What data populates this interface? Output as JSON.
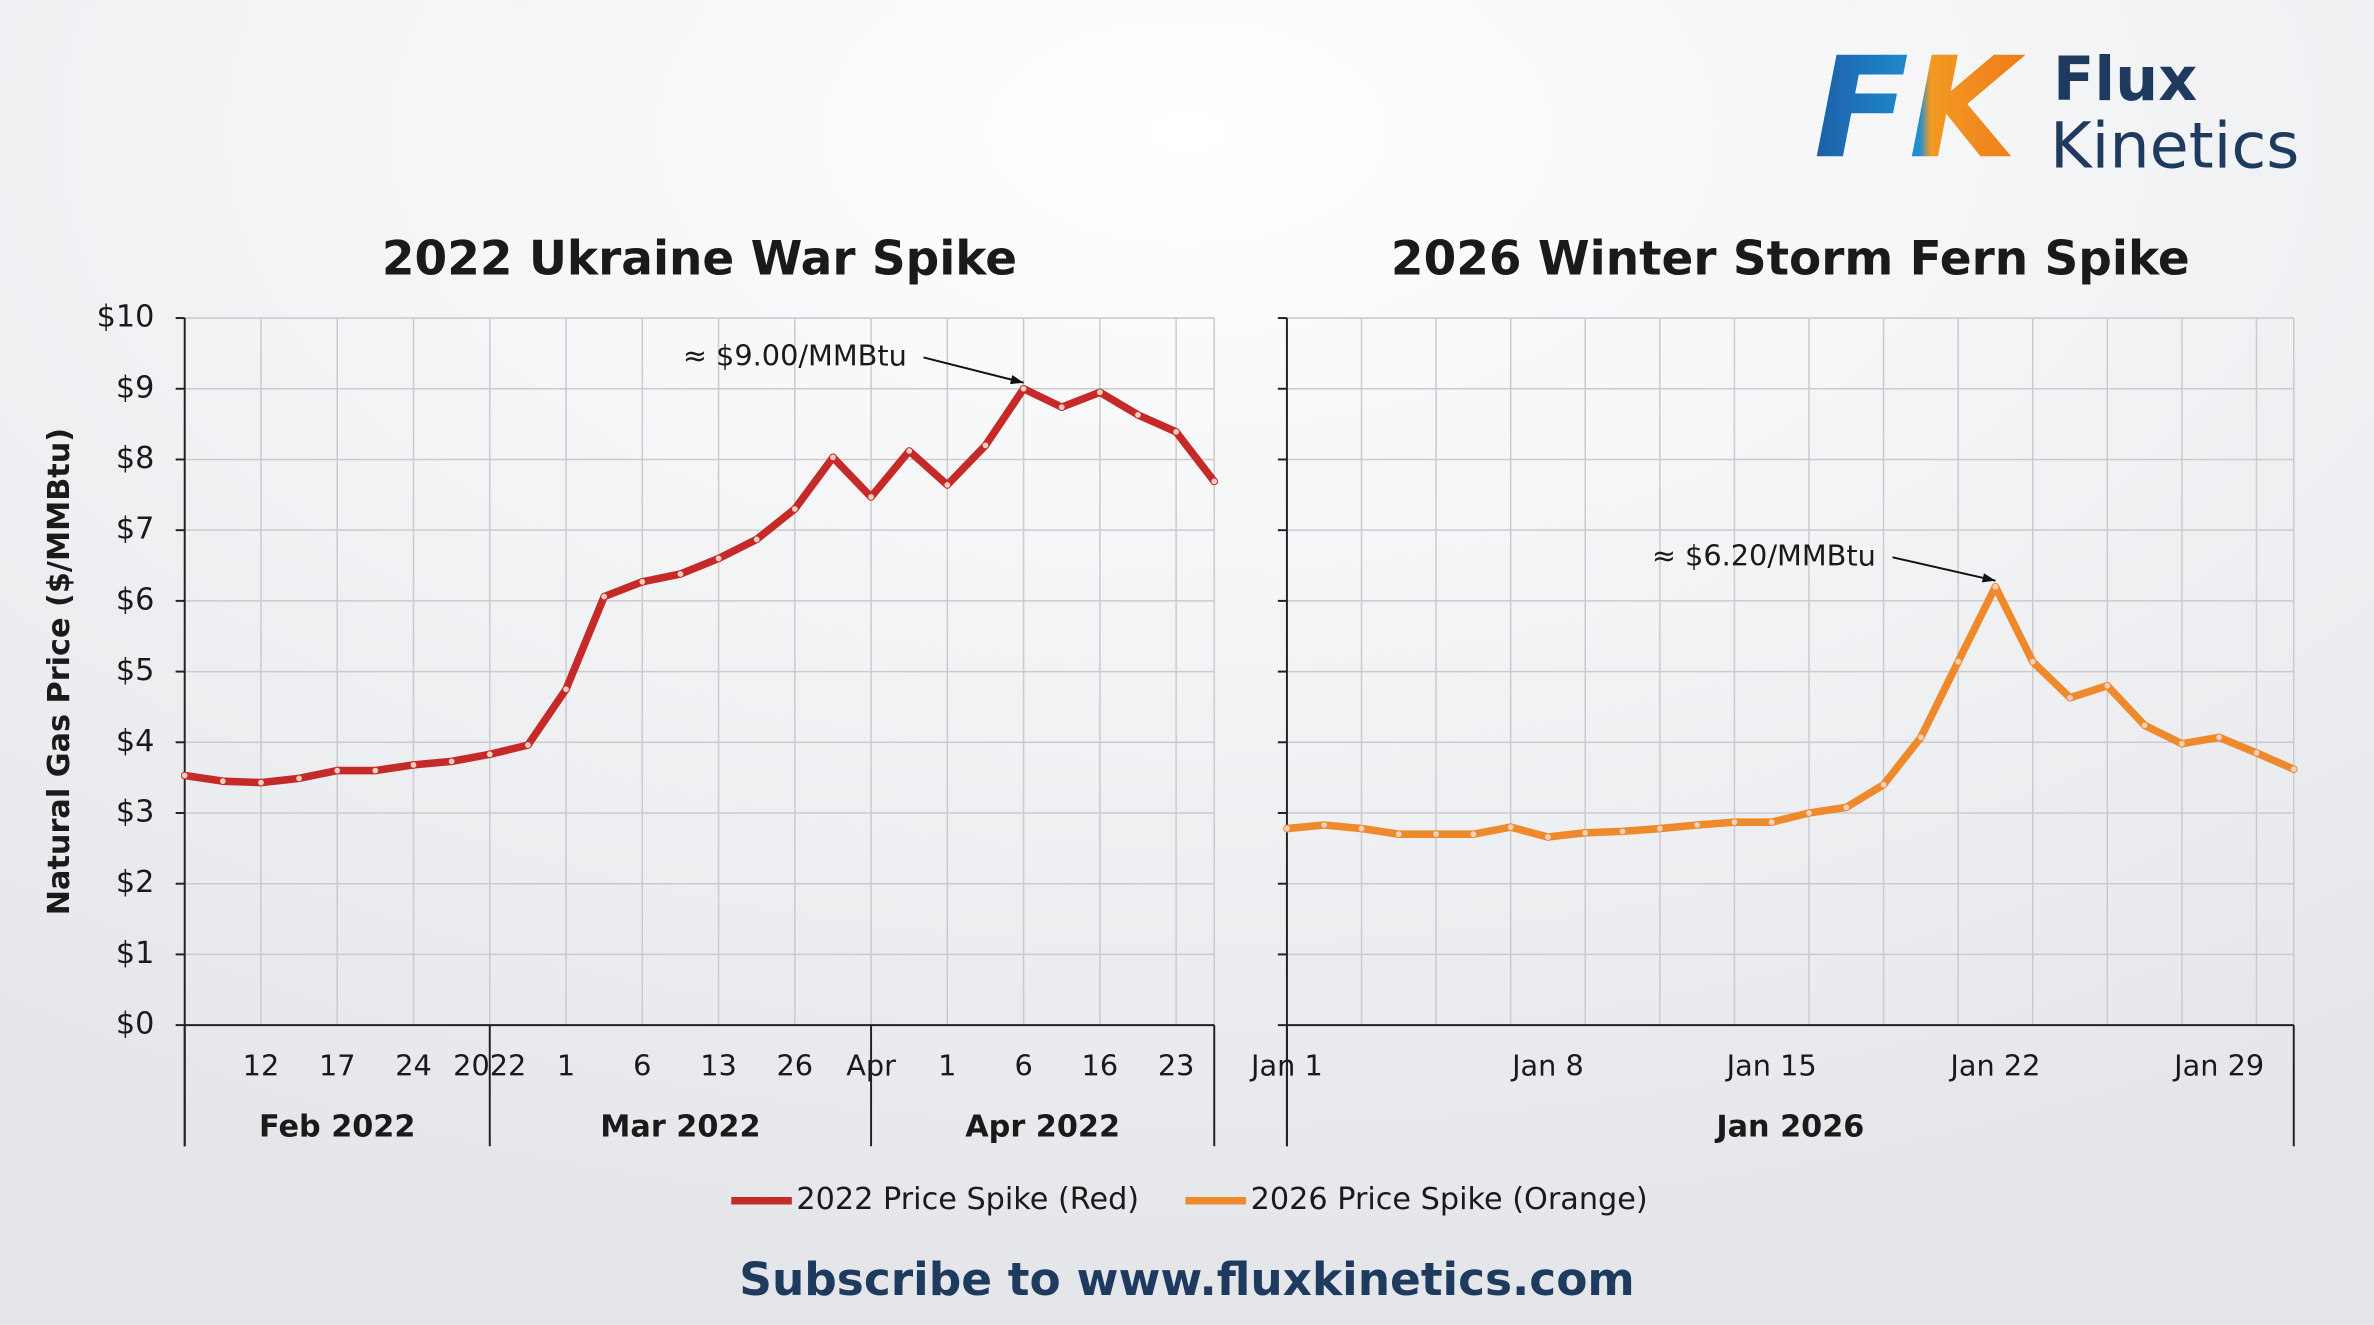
{
  "logo": {
    "mark": "FK",
    "line1": "Flux",
    "line2": "Kinetics"
  },
  "footer": "Subscribe to www.fluxkinetics.com",
  "chart_data": [
    {
      "type": "line",
      "title": "2022 Ukraine War Spike",
      "y_label": "Natural Gas Price ($/MMBtu)",
      "categories": [
        null,
        null,
        "12",
        null,
        "17",
        null,
        "24",
        null,
        "2022",
        null,
        "1",
        null,
        "6",
        null,
        "13",
        null,
        "26",
        null,
        "Apr",
        null,
        "1",
        null,
        "6",
        null,
        "16",
        null,
        "23",
        null
      ],
      "x_groups": [
        "Feb 2022",
        "Mar 2022",
        "Apr 2022"
      ],
      "series": [
        {
          "name": "2022 Price Spike (Red)",
          "color": "#c62a28",
          "values": [
            3.53,
            3.45,
            3.43,
            3.49,
            3.6,
            3.6,
            3.68,
            3.73,
            3.83,
            3.96,
            4.75,
            6.06,
            6.27,
            6.38,
            6.6,
            6.87,
            7.3,
            8.03,
            7.47,
            8.12,
            7.64,
            8.2,
            9.0,
            8.74,
            8.95,
            8.63,
            8.39,
            7.69
          ]
        }
      ],
      "annotation": "≈ $9.00/MMBtu",
      "ylim": [
        0,
        10
      ],
      "yticks": [
        {
          "value": 0,
          "label": "$0"
        },
        {
          "value": 1,
          "label": "$1"
        },
        {
          "value": 2,
          "label": "$2"
        },
        {
          "value": 3,
          "label": "$3"
        },
        {
          "value": 4,
          "label": "$4"
        },
        {
          "value": 5,
          "label": "$5"
        },
        {
          "value": 6,
          "label": "$6"
        },
        {
          "value": 7,
          "label": "$7"
        },
        {
          "value": 8,
          "label": "$8"
        },
        {
          "value": 9,
          "label": "$9"
        },
        {
          "value": 10,
          "label": "$10"
        }
      ],
      "grid": true
    },
    {
      "type": "line",
      "title": "2026 Winter Storm Fern Spike",
      "categories": [
        "Jan 1",
        null,
        null,
        null,
        null,
        null,
        null,
        "Jan 8",
        null,
        null,
        null,
        null,
        null,
        "Jan 15",
        null,
        null,
        null,
        null,
        null,
        "Jan 22",
        null,
        null,
        null,
        null,
        null,
        "Jan 29",
        null,
        null
      ],
      "x_groups": [
        "Jan 2026"
      ],
      "series": [
        {
          "name": "2026 Price Spike (Orange)",
          "color": "#ef8a2c",
          "values": [
            2.78,
            2.83,
            2.78,
            2.7,
            2.7,
            2.7,
            2.8,
            2.66,
            2.72,
            2.74,
            2.78,
            2.83,
            2.87,
            2.87,
            3.0,
            3.08,
            3.4,
            4.07,
            5.14,
            6.2,
            5.14,
            4.63,
            4.8,
            4.24,
            3.98,
            4.07,
            3.85,
            3.62
          ]
        }
      ],
      "annotation": "≈ $6.20/MMBtu",
      "ylim": [
        0,
        10
      ],
      "yticks": [
        0,
        1,
        2,
        3,
        4,
        5,
        6,
        7,
        8,
        9,
        10
      ],
      "grid": true
    }
  ]
}
